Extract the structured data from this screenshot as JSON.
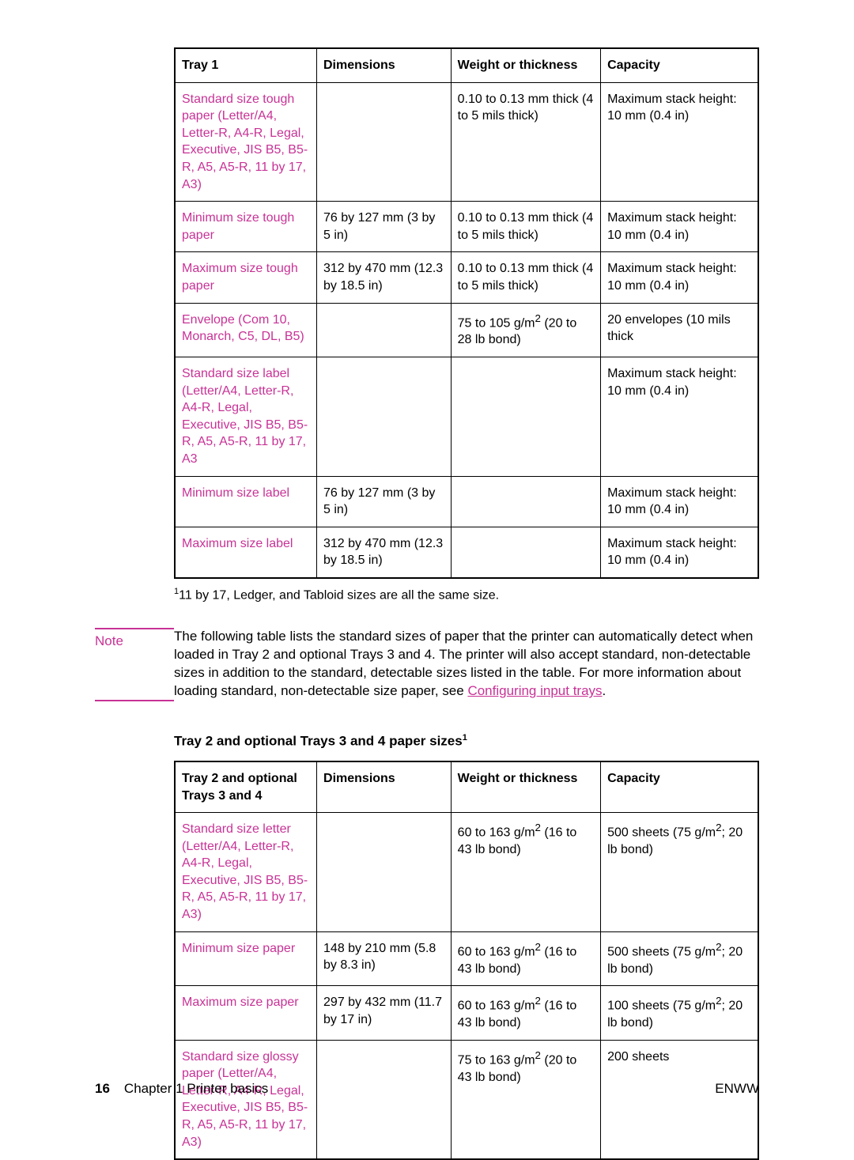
{
  "table1": {
    "headers": [
      "Tray 1",
      "Dimensions",
      "Weight or thickness",
      "Capacity"
    ],
    "rows": [
      {
        "c0": "Standard size tough paper (Letter/A4, Letter-R, A4-R, Legal, Executive, JIS B5, B5-R, A5, A5-R, 11 by 17, A3)",
        "c1": "",
        "c2": "0.10 to 0.13 mm thick (4 to 5 mils thick)",
        "c3": "Maximum stack height: 10 mm (0.4 in)"
      },
      {
        "c0": "Minimum size tough paper",
        "c1": "76 by 127 mm (3 by 5 in)",
        "c2": "0.10 to 0.13 mm thick (4 to 5 mils thick)",
        "c3": "Maximum stack height: 10 mm (0.4 in)"
      },
      {
        "c0": "Maximum size tough paper",
        "c1": "312 by 470 mm (12.3 by 18.5 in)",
        "c2": "0.10 to 0.13 mm thick (4 to 5 mils thick)",
        "c3": "Maximum stack height: 10 mm (0.4 in)"
      },
      {
        "c0": "Envelope (Com 10, Monarch, C5, DL, B5)",
        "c1": "",
        "c2_html": "75 to 105 g/m<sup>2</sup> (20 to 28 lb bond)",
        "c3": "20 envelopes (10 mils thick"
      },
      {
        "c0": "Standard size label (Letter/A4, Letter-R, A4-R, Legal, Executive, JIS B5, B5-R, A5, A5-R, 11 by 17, A3",
        "c1": "",
        "c2": "",
        "c3": "Maximum stack height: 10 mm (0.4 in)"
      },
      {
        "c0": "Minimum size label",
        "c1": "76 by 127 mm (3 by 5 in)",
        "c2": "",
        "c3": "Maximum stack height: 10 mm (0.4 in)"
      },
      {
        "c0": "Maximum size label",
        "c1": "312 by 470 mm (12.3 by 18.5 in)",
        "c2": "",
        "c3": "Maximum stack height: 10 mm (0.4 in)"
      }
    ],
    "col_widths": [
      "180px",
      "170px",
      "190px",
      "200px"
    ],
    "link_color": "#c83296"
  },
  "footnote1_prefix": "1",
  "footnote1_text": "11 by 17, Ledger, and Tabloid sizes are all the same size.",
  "note_label": "Note",
  "note_text_prefix": "The following table lists the standard sizes of paper that the printer can automatically detect when loaded in Tray 2 and optional Trays 3 and 4. The printer will also accept standard, non-detectable sizes in addition to the standard, detectable sizes listed in the table. For more information about loading standard, non-detectable size paper, see ",
  "note_link": "Configuring input trays",
  "note_suffix": ".",
  "table2_title_prefix": "Tray 2 and optional Trays 3 and 4 paper sizes",
  "table2_title_sup": "1",
  "table2": {
    "headers": [
      "Tray 2 and optional Trays 3 and 4",
      "Dimensions",
      "Weight or thickness",
      "Capacity"
    ],
    "rows": [
      {
        "c0": "Standard size letter (Letter/A4, Letter-R, A4-R, Legal, Executive, JIS B5, B5-R, A5, A5-R, 11 by 17, A3)",
        "c1": "",
        "c2_html": "60 to 163 g/m<sup>2</sup> (16 to 43 lb bond)",
        "c3_html": "500 sheets (75 g/m<sup>2</sup>; 20 lb bond)"
      },
      {
        "c0": "Minimum size paper",
        "c1": "148 by 210 mm (5.8 by 8.3 in)",
        "c2_html": "60 to 163 g/m<sup>2</sup> (16 to 43 lb bond)",
        "c3_html": "500 sheets (75 g/m<sup>2</sup>; 20 lb bond)"
      },
      {
        "c0": "Maximum size paper",
        "c1": "297 by 432 mm (11.7 by 17 in)",
        "c2_html": "60 to 163 g/m<sup>2</sup> (16 to 43 lb bond)",
        "c3_html": "100 sheets (75 g/m<sup>2</sup>; 20 lb bond)"
      },
      {
        "c0": "Standard size glossy paper (Letter/A4, Letter-R, A4-R, Legal, Executive, JIS B5, B5-R, A5, A5-R, 11 by 17, A3)",
        "c1": "",
        "c2_html": "75 to 163 g/m<sup>2</sup> (20 to 43 lb bond)",
        "c3": "200 sheets"
      }
    ],
    "col_widths": [
      "180px",
      "170px",
      "190px",
      "200px"
    ]
  },
  "footer": {
    "page_num": "16",
    "chapter": "Chapter 1  Printer basics",
    "enww": "ENWW"
  }
}
